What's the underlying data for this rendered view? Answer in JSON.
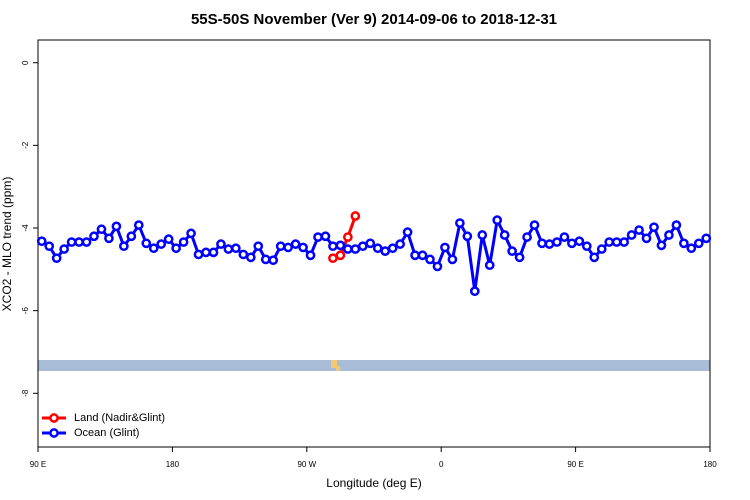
{
  "chart_data": {
    "type": "line",
    "title": "55S-50S November (Ver 9)   2014-09-06 to 2018-12-31",
    "x_label": "Longitude (deg E)",
    "y_label": "XCO2 - MLO trend (ppm)",
    "xlim": [
      90,
      540
    ],
    "ylim": [
      -9.3,
      0.55
    ],
    "xticks": [
      {
        "value": 90,
        "label": "90 E"
      },
      180,
      {
        "value": 270,
        "label": "90 W"
      },
      {
        "value": 360,
        "label": "0"
      },
      {
        "value": 450,
        "label": "90 E"
      },
      {
        "value": 540,
        "label": "180"
      }
    ],
    "yticks": [
      0,
      -2,
      -4,
      -6,
      -8
    ],
    "legend": "bottom-left",
    "series": [
      {
        "name": "Land (Nadir&Glint)",
        "color": "#ff0000",
        "x": [
          287.5,
          292.5,
          297.5,
          302.5
        ],
        "values": [
          -4.73,
          -4.66,
          -4.22,
          -3.71
        ]
      },
      {
        "name": "Ocean (Glint)",
        "color": "#0000ff",
        "x": [
          92.5,
          97.5,
          102.5,
          107.5,
          112.5,
          117.5,
          122.5,
          127.5,
          132.5,
          137.5,
          142.5,
          147.5,
          152.5,
          157.5,
          162.5,
          167.5,
          172.5,
          177.5,
          182.5,
          187.5,
          192.5,
          197.5,
          202.5,
          207.5,
          212.5,
          217.5,
          222.5,
          227.5,
          232.5,
          237.5,
          242.5,
          247.5,
          252.5,
          257.5,
          262.5,
          267.5,
          272.5,
          277.5,
          282.5,
          287.5,
          292.5,
          297.5,
          302.5,
          307.5,
          312.5,
          317.5,
          322.5,
          327.5,
          332.5,
          337.5,
          342.5,
          347.5,
          352.5,
          357.5,
          362.5,
          367.5,
          372.5,
          377.5,
          382.5,
          387.5,
          392.5,
          397.5,
          402.5,
          407.5,
          412.5,
          417.5,
          422.5,
          427.5,
          432.5,
          437.5,
          442.5,
          447.5,
          452.5,
          457.5,
          462.5,
          467.5,
          472.5,
          477.5,
          482.5,
          487.5,
          492.5,
          497.5,
          502.5,
          507.5,
          512.5,
          517.5,
          522.5,
          527.5,
          532.5,
          537.5
        ],
        "values": [
          -4.32,
          -4.44,
          -4.73,
          -4.51,
          -4.34,
          -4.34,
          -4.34,
          -4.2,
          -4.03,
          -4.25,
          -3.96,
          -4.44,
          -4.2,
          -3.93,
          -4.37,
          -4.49,
          -4.39,
          -4.27,
          -4.49,
          -4.34,
          -4.13,
          -4.64,
          -4.59,
          -4.59,
          -4.39,
          -4.51,
          -4.49,
          -4.64,
          -4.71,
          -4.44,
          -4.76,
          -4.78,
          -4.44,
          -4.47,
          -4.39,
          -4.47,
          -4.66,
          -4.22,
          -4.2,
          -4.44,
          -4.42,
          -4.51,
          -4.51,
          -4.44,
          -4.37,
          -4.49,
          -4.56,
          -4.49,
          -4.39,
          -4.1,
          -4.66,
          -4.66,
          -4.76,
          -4.93,
          -4.47,
          -4.76,
          -3.88,
          -4.2,
          -5.53,
          -4.17,
          -4.9,
          -3.81,
          -4.17,
          -4.56,
          -4.71,
          -4.22,
          -3.93,
          -4.37,
          -4.39,
          -4.34,
          -4.22,
          -4.37,
          -4.32,
          -4.44,
          -4.71,
          -4.51,
          -4.34,
          -4.34,
          -4.34,
          -4.17,
          -4.05,
          -4.25,
          -3.98,
          -4.42,
          -4.17,
          -3.93,
          -4.37,
          -4.49,
          -4.37,
          -4.25
        ]
      }
    ]
  }
}
